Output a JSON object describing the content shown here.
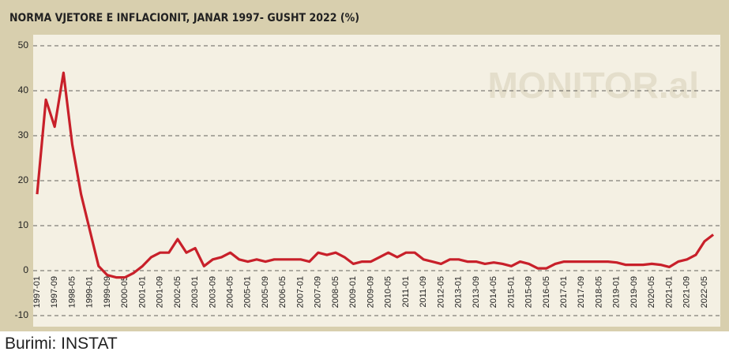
{
  "chart_data": {
    "type": "line",
    "title": "NORMA VJETORE E INFLACIONIT, JANAR 1997- GUSHT 2022 (%)",
    "watermark": "MONITOR.al",
    "source": "Burimi: INSTAT",
    "color": "#c8202a",
    "categories": [
      "1997-01",
      null,
      "1997-09",
      null,
      "1998-05",
      null,
      "1999-01",
      null,
      "1999-09",
      null,
      "2000-05",
      null,
      "2001-01",
      null,
      "2001-09",
      null,
      "2002-05",
      null,
      "2003-01",
      null,
      "2003-09",
      null,
      "2004-05",
      null,
      "2005-01",
      null,
      "2005-09",
      null,
      "2006-05",
      null,
      "2007-01",
      null,
      "2007-09",
      null,
      "2008-05",
      null,
      "2009-01",
      null,
      "2009-09",
      null,
      "2010-05",
      null,
      "2011-01",
      null,
      "2011-09",
      null,
      "2012-05",
      null,
      "2013-01",
      null,
      "2013-09",
      null,
      "2014-05",
      null,
      "2015-01",
      null,
      "2015-09",
      null,
      "2016-05",
      null,
      "2017-01",
      null,
      "2017-09",
      null,
      "2018-05",
      null,
      "2019-01",
      null,
      "2019-09",
      null,
      "2020-05",
      null,
      "2021-01",
      null,
      "2021-09",
      null,
      "2022-05",
      null
    ],
    "values": [
      17,
      38,
      32,
      44,
      28,
      17,
      9,
      1,
      -1,
      -1.5,
      -1.5,
      -0.5,
      1,
      3,
      4,
      4,
      7,
      4,
      5,
      1,
      2.5,
      3,
      4,
      2.5,
      2,
      2.5,
      2,
      2.5,
      2.5,
      2.5,
      2.5,
      2,
      4,
      3.5,
      4,
      3,
      1.5,
      2,
      2,
      3,
      4,
      3,
      4,
      4,
      2.5,
      2,
      1.5,
      2.5,
      2.5,
      2,
      2,
      1.5,
      1.8,
      1.5,
      1,
      2,
      1.5,
      0.5,
      0.5,
      1.5,
      2,
      2,
      2,
      2,
      2,
      2,
      1.8,
      1.3,
      1.3,
      1.3,
      1.5,
      1.3,
      0.8,
      2,
      2.5,
      3.5,
      6.5,
      8
    ],
    "ylim": [
      -10,
      50
    ],
    "yticks": [
      -10,
      0,
      10,
      20,
      30,
      40,
      50
    ],
    "grid": true
  }
}
